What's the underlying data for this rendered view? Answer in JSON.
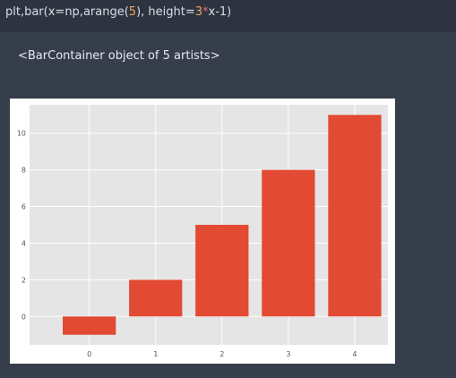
{
  "input": {
    "prefix": "plt,bar(x=np,arange(",
    "arg_num": "5",
    "middle": "), height=",
    "mult_num": "3",
    "op": "*",
    "suffix": "x-1)"
  },
  "output": {
    "repr": "<BarContainer object of 5 artists>"
  },
  "colors": {
    "bar": "#e24a33",
    "plot_bg": "#e5e5e5",
    "grid": "#ffffff"
  },
  "chart_data": {
    "type": "bar",
    "x": [
      0,
      1,
      2,
      3,
      4
    ],
    "values": [
      -1,
      2,
      5,
      8,
      11
    ],
    "xticks": [
      "0",
      "1",
      "2",
      "3",
      "4"
    ],
    "yticks": [
      "0",
      "2",
      "4",
      "6",
      "8",
      "10"
    ],
    "ylim": [
      -1.55,
      11.55
    ],
    "xlim": [
      -0.9,
      4.5
    ],
    "grid": true,
    "style": "ggplot"
  }
}
